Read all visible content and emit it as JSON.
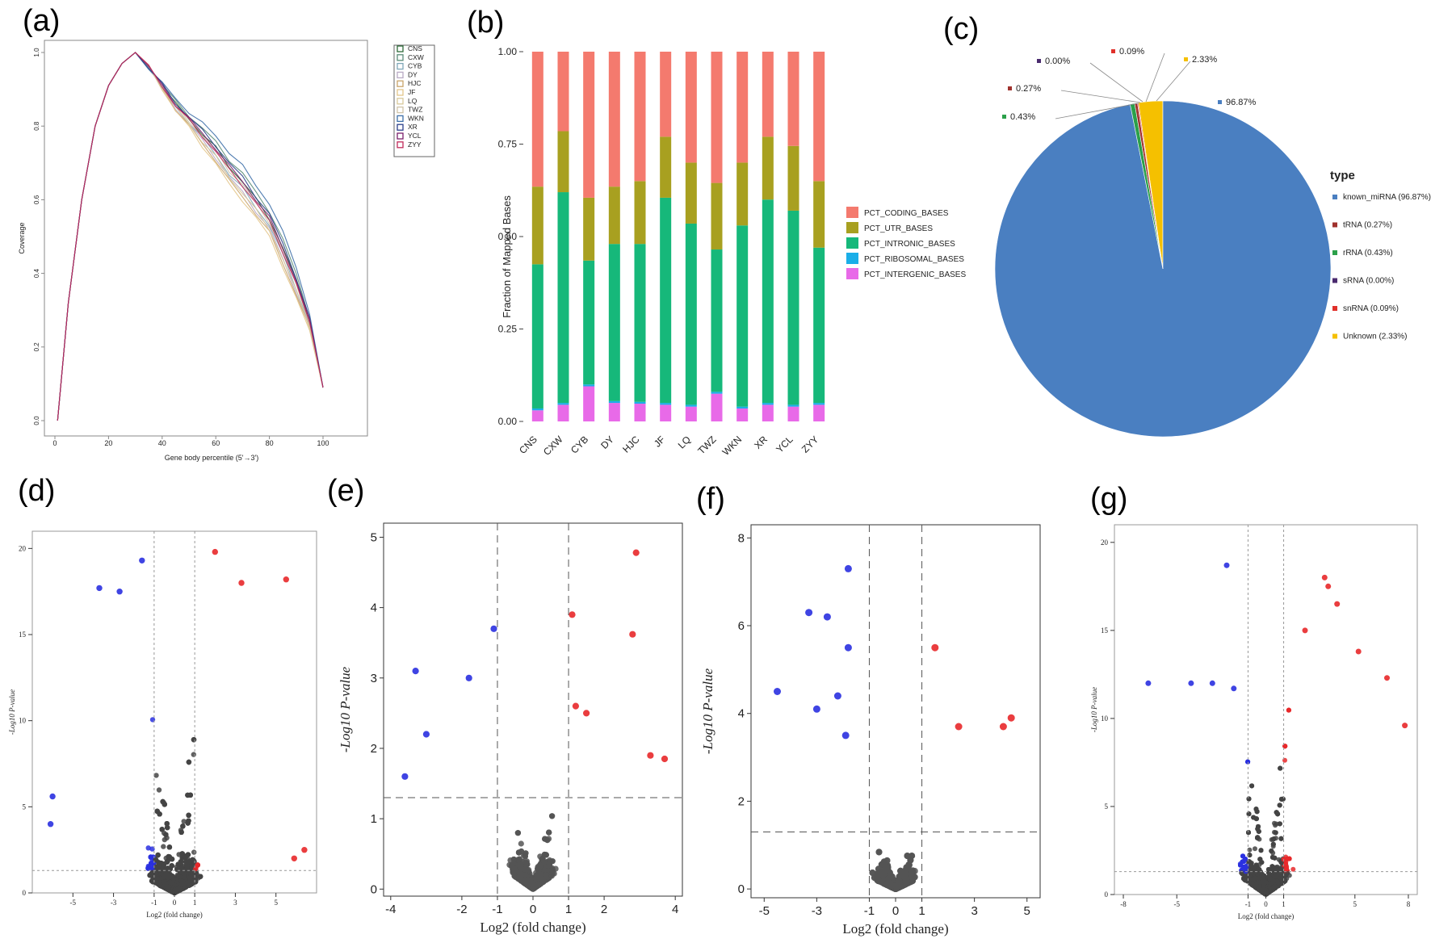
{
  "figure": {
    "panel_labels": [
      "(a)",
      "(b)",
      "(c)",
      "(d)",
      "(e)",
      "(f)",
      "(g)"
    ]
  },
  "chart_data": [
    {
      "id": "a",
      "type": "line",
      "title": "",
      "xlabel": "Gene body percentile (5'→3')",
      "ylabel": "Coverage",
      "xlim": [
        0,
        100
      ],
      "ylim": [
        0,
        1
      ],
      "x_ticks": [
        0,
        20,
        40,
        60,
        80,
        100
      ],
      "y_ticks": [
        "0.0",
        "0.2",
        "0.4",
        "0.6",
        "0.8",
        "1.0"
      ],
      "x": [
        1,
        5,
        10,
        15,
        20,
        25,
        30,
        35,
        40,
        45,
        50,
        55,
        60,
        65,
        70,
        75,
        80,
        85,
        90,
        95,
        100
      ],
      "base_values": [
        0.0,
        0.32,
        0.6,
        0.8,
        0.91,
        0.97,
        1.0,
        0.96,
        0.91,
        0.86,
        0.82,
        0.78,
        0.74,
        0.69,
        0.65,
        0.6,
        0.55,
        0.47,
        0.38,
        0.27,
        0.09
      ],
      "series": [
        {
          "name": "CNS",
          "color": "#2f6b3a",
          "tail_shift": 0.0
        },
        {
          "name": "CXW",
          "color": "#5a8c78",
          "tail_shift": 0.02
        },
        {
          "name": "CYB",
          "color": "#7fa7b8",
          "tail_shift": -0.02
        },
        {
          "name": "DY",
          "color": "#b8a9c4",
          "tail_shift": -0.03
        },
        {
          "name": "HJC",
          "color": "#c9a46a",
          "tail_shift": -0.04
        },
        {
          "name": "JF",
          "color": "#e3c58a",
          "tail_shift": -0.05
        },
        {
          "name": "LQ",
          "color": "#d8c99a",
          "tail_shift": -0.03
        },
        {
          "name": "TWZ",
          "color": "#cfc3a8",
          "tail_shift": -0.01
        },
        {
          "name": "WKN",
          "color": "#3d6fa8",
          "tail_shift": 0.04
        },
        {
          "name": "XR",
          "color": "#2b3f8a",
          "tail_shift": 0.01
        },
        {
          "name": "YCL",
          "color": "#7a1f6b",
          "tail_shift": 0.0
        },
        {
          "name": "ZYY",
          "color": "#c02a5a",
          "tail_shift": -0.01
        }
      ]
    },
    {
      "id": "b",
      "type": "bar",
      "stacked": true,
      "title": "",
      "xlabel": "",
      "ylabel": "Fraction of Mapped Bases",
      "ylim": [
        0,
        1
      ],
      "y_ticks": [
        "0.00",
        "0.25",
        "0.50",
        "0.75",
        "1.00"
      ],
      "categories": [
        "CNS",
        "CXW",
        "CYB",
        "DY",
        "HJC",
        "JF",
        "LQ",
        "TWZ",
        "WKN",
        "XR",
        "YCL",
        "ZYY"
      ],
      "series": [
        {
          "name": "PCT_INTERGENIC_BASES",
          "color": "#e86ae8",
          "values": [
            0.03,
            0.045,
            0.095,
            0.05,
            0.048,
            0.045,
            0.04,
            0.075,
            0.035,
            0.045,
            0.04,
            0.045
          ]
        },
        {
          "name": "PCT_RIBOSOMAL_BASES",
          "color": "#1aaee8",
          "values": [
            0.005,
            0.005,
            0.005,
            0.005,
            0.005,
            0.005,
            0.005,
            0.005,
            0.005,
            0.005,
            0.005,
            0.005
          ]
        },
        {
          "name": "PCT_INTRONIC_BASES",
          "color": "#16b87a",
          "values": [
            0.39,
            0.57,
            0.335,
            0.425,
            0.427,
            0.555,
            0.49,
            0.385,
            0.49,
            0.55,
            0.525,
            0.42
          ]
        },
        {
          "name": "PCT_UTR_BASES",
          "color": "#a8a020",
          "values": [
            0.21,
            0.165,
            0.17,
            0.155,
            0.17,
            0.165,
            0.165,
            0.18,
            0.17,
            0.17,
            0.175,
            0.18
          ]
        },
        {
          "name": "PCT_CODING_BASES",
          "color": "#f47a6e",
          "values": [
            0.365,
            0.215,
            0.395,
            0.365,
            0.35,
            0.23,
            0.3,
            0.355,
            0.3,
            0.23,
            0.255,
            0.35
          ]
        }
      ],
      "legend_order": [
        "PCT_CODING_BASES",
        "PCT_UTR_BASES",
        "PCT_INTRONIC_BASES",
        "PCT_RIBOSOMAL_BASES",
        "PCT_INTERGENIC_BASES"
      ]
    },
    {
      "id": "c",
      "type": "pie",
      "title": "",
      "legend_title": "type",
      "slices": [
        {
          "name": "known_miRNA",
          "legend": "known_miRNA (96.87%)",
          "label": "96.87%",
          "value": 96.87,
          "color": "#4a7fc1"
        },
        {
          "name": "tRNA",
          "legend": "tRNA (0.27%)",
          "label": "0.27%",
          "value": 0.27,
          "color": "#a0322e"
        },
        {
          "name": "rRNA",
          "legend": "rRNA (0.43%)",
          "label": "0.43%",
          "value": 0.43,
          "color": "#2ba04a"
        },
        {
          "name": "sRNA",
          "legend": "sRNA (0.00%)",
          "label": "0.00%",
          "value": 0.0,
          "color": "#4a2a6e"
        },
        {
          "name": "snRNA",
          "legend": "snRNA (0.09%)",
          "label": "0.09%",
          "value": 0.09,
          "color": "#e0302a"
        },
        {
          "name": "Unknown",
          "legend": "Unknown (2.33%)",
          "label": "2.33%",
          "value": 2.33,
          "color": "#f5c000"
        }
      ]
    },
    {
      "id": "d",
      "type": "scatter",
      "xlabel": "Log2 (fold change)",
      "ylabel": "-Log10 P-value",
      "xlim": [
        -7,
        7
      ],
      "ylim": [
        0,
        21
      ],
      "x_ticks": [
        "-5",
        "-3",
        "-1",
        "0",
        "1",
        "3",
        "5"
      ],
      "x_tick_values": [
        -5,
        -3,
        -1,
        0,
        1,
        3,
        5
      ],
      "y_ticks": [
        "0",
        "5",
        "10",
        "15",
        "20"
      ],
      "y_tick_values": [
        0,
        5,
        10,
        15,
        20
      ],
      "fc_threshold": 1,
      "p_threshold": 1.3,
      "colors": {
        "up": "#e8282a",
        "down": "#2a30e0",
        "ns": "#444444"
      },
      "highlight_points": [
        [
          -3.7,
          17.7
        ],
        [
          -2.7,
          17.5
        ],
        [
          -1.6,
          19.3
        ],
        [
          2.0,
          19.8
        ],
        [
          3.3,
          18.0
        ],
        [
          5.5,
          18.2
        ],
        [
          -6.1,
          4.0
        ],
        [
          -6.0,
          5.6
        ],
        [
          6.4,
          2.5
        ],
        [
          5.9,
          2.0
        ]
      ]
    },
    {
      "id": "e",
      "type": "scatter",
      "xlabel": "Log2 (fold change)",
      "ylabel": "-Log10 P-value",
      "xlim": [
        -4.2,
        4.2
      ],
      "ylim": [
        -0.1,
        5.2
      ],
      "x_ticks": [
        "-4",
        "-2",
        "-1",
        "0",
        "1",
        "2",
        "4"
      ],
      "x_tick_values": [
        -4,
        -2,
        -1,
        0,
        1,
        2,
        4
      ],
      "y_ticks": [
        "0",
        "1",
        "2",
        "3",
        "4",
        "5"
      ],
      "y_tick_values": [
        0,
        1,
        2,
        3,
        4,
        5
      ],
      "fc_threshold": 1,
      "p_threshold": 1.3,
      "colors": {
        "up": "#e8282a",
        "down": "#2a30e0",
        "ns": "#555555"
      },
      "highlight_points": [
        [
          2.9,
          4.78
        ],
        [
          2.8,
          3.62
        ],
        [
          1.1,
          3.9
        ],
        [
          -1.1,
          3.7
        ],
        [
          -3.3,
          3.1
        ],
        [
          -3.0,
          2.2
        ],
        [
          -1.8,
          3.0
        ],
        [
          -3.6,
          1.6
        ],
        [
          3.3,
          1.9
        ],
        [
          3.7,
          1.85
        ],
        [
          1.2,
          2.6
        ],
        [
          1.5,
          2.5
        ]
      ]
    },
    {
      "id": "f",
      "type": "scatter",
      "xlabel": "Log2 (fold change)",
      "ylabel": "-Log10 P-value",
      "xlim": [
        -5.5,
        5.5
      ],
      "ylim": [
        -0.2,
        8.3
      ],
      "x_ticks": [
        "-5",
        "-3",
        "-1",
        "0",
        "1",
        "3",
        "5"
      ],
      "x_tick_values": [
        -5,
        -3,
        -1,
        0,
        1,
        3,
        5
      ],
      "y_ticks": [
        "0",
        "2",
        "4",
        "6",
        "8"
      ],
      "y_tick_values": [
        0,
        2,
        4,
        6,
        8
      ],
      "fc_threshold": 1,
      "p_threshold": 1.3,
      "colors": {
        "up": "#e8282a",
        "down": "#2a30e0",
        "ns": "#555555"
      },
      "highlight_points": [
        [
          -1.8,
          7.3
        ],
        [
          -3.3,
          6.3
        ],
        [
          -2.6,
          6.2
        ],
        [
          -1.8,
          5.5
        ],
        [
          -4.5,
          4.5
        ],
        [
          -3.0,
          4.1
        ],
        [
          1.5,
          5.5
        ],
        [
          4.4,
          3.9
        ],
        [
          4.1,
          3.7
        ],
        [
          2.4,
          3.7
        ],
        [
          -2.2,
          4.4
        ],
        [
          -1.9,
          3.5
        ]
      ]
    },
    {
      "id": "g",
      "type": "scatter",
      "xlabel": "Log2 (fold change)",
      "ylabel": "-Log10 P-value",
      "xlim": [
        -8.5,
        8.5
      ],
      "ylim": [
        0,
        21
      ],
      "x_ticks": [
        "-8",
        "-5",
        "-1",
        "0",
        "1",
        "5",
        "8"
      ],
      "x_tick_values": [
        -8,
        -5,
        -1,
        0,
        1,
        5,
        8
      ],
      "y_ticks": [
        "0",
        "5",
        "10",
        "15",
        "20"
      ],
      "y_tick_values": [
        0,
        5,
        10,
        15,
        20
      ],
      "fc_threshold": 1,
      "p_threshold": 1.3,
      "colors": {
        "up": "#e8282a",
        "down": "#2a30e0",
        "ns": "#444444"
      },
      "highlight_points": [
        [
          -2.2,
          18.7
        ],
        [
          3.3,
          18.0
        ],
        [
          3.5,
          17.5
        ],
        [
          4.0,
          16.5
        ],
        [
          5.2,
          13.8
        ],
        [
          6.8,
          12.3
        ],
        [
          7.8,
          9.6
        ],
        [
          -6.6,
          12.0
        ],
        [
          -4.2,
          12.0
        ],
        [
          -3.0,
          12.0
        ],
        [
          -1.8,
          11.7
        ],
        [
          2.2,
          15.0
        ]
      ]
    }
  ]
}
